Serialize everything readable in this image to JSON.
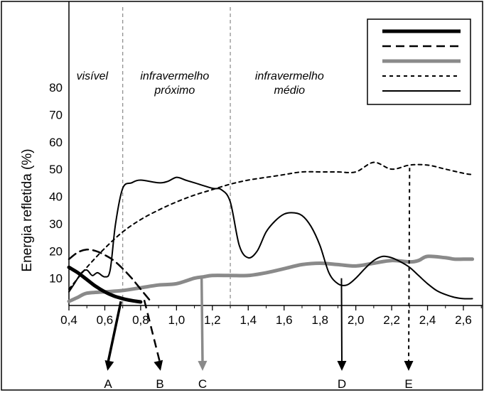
{
  "chart_data": {
    "type": "line",
    "title": "",
    "xlabel": "",
    "ylabel": "Energia refletida (%)",
    "xlim": [
      0.4,
      2.7
    ],
    "ylim": [
      0,
      90
    ],
    "x_ticks": [
      "0,4",
      "0,6",
      "0,8",
      "1,0",
      "1,2",
      "1,4",
      "1,6",
      "1,8",
      "2,0",
      "2,2",
      "2,4",
      "2,6"
    ],
    "x_tick_values": [
      0.4,
      0.6,
      0.8,
      1.0,
      1.2,
      1.4,
      1.6,
      1.8,
      2.0,
      2.2,
      2.4,
      2.6
    ],
    "y_ticks": [
      "10",
      "20",
      "30",
      "40",
      "50",
      "60",
      "70",
      "80"
    ],
    "y_tick_values": [
      10,
      20,
      30,
      40,
      50,
      60,
      70,
      80
    ],
    "regions": [
      {
        "label_lines": [
          "visível"
        ],
        "x": 0.53
      },
      {
        "label_lines": [
          "infravermelho",
          "próximo"
        ],
        "x": 0.99
      },
      {
        "label_lines": [
          "infravermelho",
          "médio"
        ],
        "x": 1.63
      }
    ],
    "region_dividers": [
      0.7,
      1.3
    ],
    "legend": {
      "placement": "top-right",
      "entries": [
        "",
        "",
        "",
        "",
        ""
      ]
    },
    "series": [
      {
        "style": "thick-solid-black",
        "x": [
          0.4,
          0.45,
          0.5,
          0.55,
          0.6,
          0.65,
          0.7,
          0.75,
          0.8
        ],
        "y": [
          14,
          12,
          9.5,
          7,
          5,
          3.5,
          2.5,
          1.8,
          1.3
        ]
      },
      {
        "style": "dashed-black",
        "x": [
          0.4,
          0.45,
          0.5,
          0.55,
          0.6,
          0.65,
          0.7,
          0.75,
          0.8,
          0.85
        ],
        "y": [
          17,
          19.5,
          20.5,
          20,
          18.5,
          16.5,
          13.5,
          10,
          6,
          2
        ]
      },
      {
        "style": "thick-solid-gray",
        "x": [
          0.4,
          0.45,
          0.5,
          0.6,
          0.7,
          0.8,
          0.9,
          1.0,
          1.1,
          1.15,
          1.2,
          1.3,
          1.4,
          1.5,
          1.6,
          1.7,
          1.8,
          1.9,
          2.0,
          2.1,
          2.2,
          2.3,
          2.35,
          2.4,
          2.5,
          2.55,
          2.6,
          2.65
        ],
        "y": [
          1.5,
          3,
          4.5,
          5,
          5.5,
          6.5,
          7.5,
          8,
          10,
          10.5,
          11,
          11,
          11,
          12,
          13.5,
          15,
          15.5,
          15,
          14.5,
          15.5,
          16.5,
          16,
          16.5,
          18,
          17.5,
          17,
          17,
          17
        ]
      },
      {
        "style": "dotted-black",
        "x": [
          0.4,
          0.45,
          0.5,
          0.6,
          0.7,
          0.8,
          0.9,
          1.0,
          1.1,
          1.2,
          1.3,
          1.4,
          1.5,
          1.6,
          1.7,
          1.8,
          1.9,
          2.0,
          2.1,
          2.2,
          2.3,
          2.4,
          2.5,
          2.6,
          2.65
        ],
        "y": [
          6,
          10,
          14,
          21,
          27,
          31.5,
          35,
          38,
          40.5,
          42.5,
          44.5,
          46,
          47,
          48,
          49,
          49,
          49,
          49,
          52.5,
          50,
          51.5,
          51.5,
          50,
          48.5,
          48
        ]
      },
      {
        "style": "thin-solid-black",
        "x": [
          0.4,
          0.43,
          0.47,
          0.5,
          0.53,
          0.56,
          0.6,
          0.63,
          0.66,
          0.7,
          0.75,
          0.8,
          0.9,
          0.95,
          1.0,
          1.05,
          1.1,
          1.2,
          1.25,
          1.3,
          1.35,
          1.4,
          1.45,
          1.5,
          1.55,
          1.6,
          1.65,
          1.7,
          1.75,
          1.8,
          1.85,
          1.9,
          1.95,
          2.0,
          2.05,
          2.1,
          2.15,
          2.2,
          2.25,
          2.3,
          2.35,
          2.4,
          2.45,
          2.5,
          2.55,
          2.6,
          2.65
        ],
        "y": [
          5,
          8,
          12,
          13,
          11,
          12,
          10.5,
          13,
          30,
          43,
          45,
          46,
          45,
          45.5,
          47,
          46,
          45,
          43,
          42.5,
          38,
          22,
          17.5,
          20,
          27,
          31,
          33.5,
          34,
          33,
          29,
          22,
          12,
          8,
          7.5,
          10,
          13.5,
          16.5,
          18,
          17.5,
          16,
          14,
          11,
          8,
          5.5,
          4,
          3,
          2.5,
          2.5
        ]
      }
    ],
    "arrows": [
      {
        "label": "A",
        "style": "thick-solid-black",
        "from": [
          0.69,
          1.5
        ]
      },
      {
        "label": "B",
        "style": "dashed-black",
        "from": [
          0.82,
          2
        ]
      },
      {
        "label": "C",
        "style": "thick-solid-gray",
        "from": [
          1.14,
          10
        ]
      },
      {
        "label": "D",
        "style": "thin-solid-black",
        "from": [
          1.92,
          10
        ]
      },
      {
        "label": "E",
        "style": "dotted-black",
        "from": [
          2.3,
          50.5
        ]
      }
    ]
  }
}
